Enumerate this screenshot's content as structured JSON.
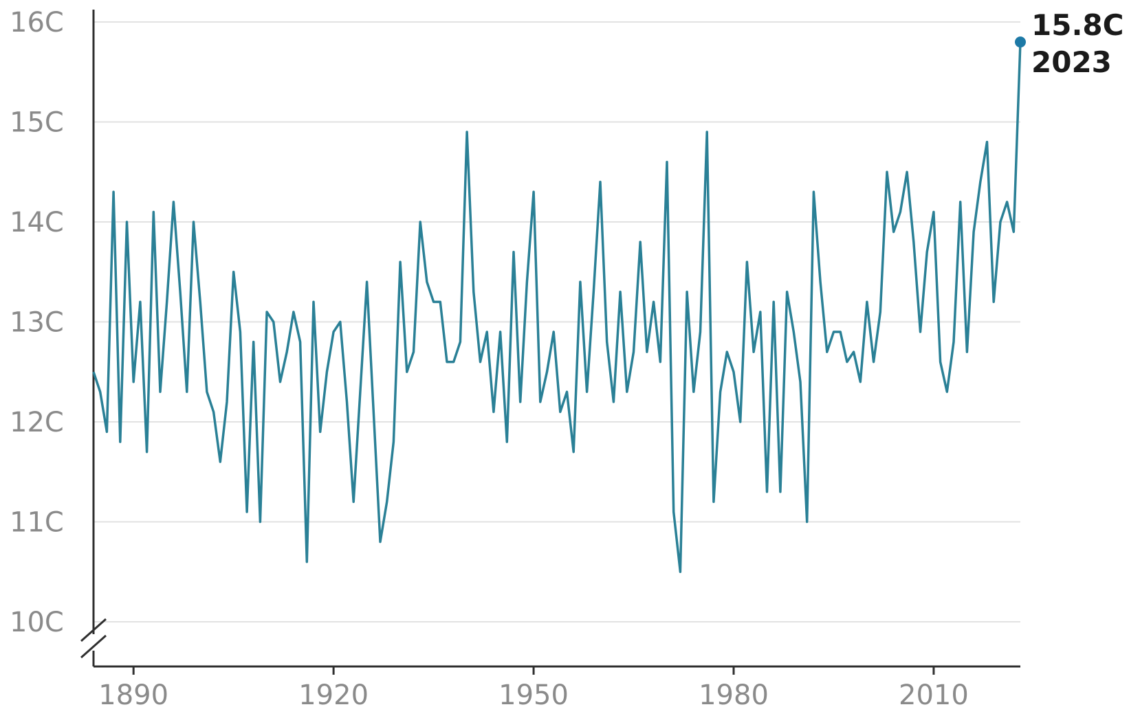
{
  "chart_data": {
    "type": "line",
    "title": "",
    "xlabel": "",
    "ylabel": "",
    "xlim": [
      1884,
      2023
    ],
    "ylim": [
      10,
      16
    ],
    "y_ticks": [
      10,
      11,
      12,
      13,
      14,
      15,
      16
    ],
    "y_tick_labels": [
      "10C",
      "11C",
      "12C",
      "13C",
      "14C",
      "15C",
      "16C"
    ],
    "x_ticks": [
      1890,
      1920,
      1950,
      1980,
      2010
    ],
    "x_tick_labels": [
      "1890",
      "1920",
      "1950",
      "1980",
      "2010"
    ],
    "grid": "horizontal",
    "y_axis_break": true,
    "line_color": "#2a8096",
    "highlight_color": "#1d79a6",
    "series": [
      {
        "x": [
          1884,
          1885,
          1886,
          1887,
          1888,
          1889,
          1890,
          1891,
          1892,
          1893,
          1894,
          1895,
          1896,
          1897,
          1898,
          1899,
          1900,
          1901,
          1902,
          1903,
          1904,
          1905,
          1906,
          1907,
          1908,
          1909,
          1910,
          1911,
          1912,
          1913,
          1914,
          1915,
          1916,
          1917,
          1918,
          1919,
          1920,
          1921,
          1922,
          1923,
          1924,
          1925,
          1926,
          1927,
          1928,
          1929,
          1930,
          1931,
          1932,
          1933,
          1934,
          1935,
          1936,
          1937,
          1938,
          1939,
          1940,
          1941,
          1942,
          1943,
          1944,
          1945,
          1946,
          1947,
          1948,
          1949,
          1950,
          1951,
          1952,
          1953,
          1954,
          1955,
          1956,
          1957,
          1958,
          1959,
          1960,
          1961,
          1962,
          1963,
          1964,
          1965,
          1966,
          1967,
          1968,
          1969,
          1970,
          1971,
          1972,
          1973,
          1974,
          1975,
          1976,
          1977,
          1978,
          1979,
          1980,
          1981,
          1982,
          1983,
          1984,
          1985,
          1986,
          1987,
          1988,
          1989,
          1990,
          1991,
          1992,
          1993,
          1994,
          1995,
          1996,
          1997,
          1998,
          1999,
          2000,
          2001,
          2002,
          2003,
          2004,
          2005,
          2006,
          2007,
          2008,
          2009,
          2010,
          2011,
          2012,
          2013,
          2014,
          2015,
          2016,
          2017,
          2018,
          2019,
          2020,
          2021,
          2022,
          2023
        ],
        "values": [
          12.5,
          12.3,
          11.9,
          14.3,
          11.8,
          14.0,
          12.4,
          13.2,
          11.7,
          14.1,
          12.3,
          13.2,
          14.2,
          13.3,
          12.3,
          14.0,
          13.2,
          12.3,
          12.1,
          11.6,
          12.2,
          13.5,
          12.9,
          11.1,
          12.8,
          11.0,
          13.1,
          13.0,
          12.4,
          12.7,
          13.1,
          12.8,
          10.6,
          13.2,
          11.9,
          12.5,
          12.9,
          13.0,
          12.2,
          11.2,
          12.3,
          13.4,
          12.1,
          10.8,
          11.2,
          11.8,
          13.6,
          12.5,
          12.7,
          14.0,
          13.4,
          13.2,
          13.2,
          12.6,
          12.6,
          12.8,
          14.9,
          13.3,
          12.6,
          12.9,
          12.1,
          12.9,
          11.8,
          13.7,
          12.2,
          13.4,
          14.3,
          12.2,
          12.5,
          12.9,
          12.1,
          12.3,
          11.7,
          13.4,
          12.3,
          13.3,
          14.4,
          12.8,
          12.2,
          13.3,
          12.3,
          12.7,
          13.8,
          12.7,
          13.2,
          12.6,
          14.6,
          11.1,
          10.5,
          13.3,
          12.3,
          12.9,
          14.9,
          11.2,
          12.3,
          12.7,
          12.5,
          12.0,
          13.6,
          12.7,
          13.1,
          11.3,
          13.2,
          11.3,
          13.3,
          12.9,
          12.4,
          11.0,
          14.3,
          13.4,
          12.7,
          12.9,
          12.9,
          12.6,
          12.7,
          12.4,
          13.2,
          12.6,
          13.1,
          14.5,
          13.9,
          14.1,
          14.5,
          13.8,
          12.9,
          13.7,
          14.1,
          12.6,
          12.3,
          12.8,
          14.2,
          12.7,
          13.9,
          14.4,
          14.8,
          13.2,
          14.0,
          14.2,
          13.9,
          15.8
        ]
      }
    ],
    "annotation": {
      "value_label": "15.8C",
      "year_label": "2023"
    }
  }
}
